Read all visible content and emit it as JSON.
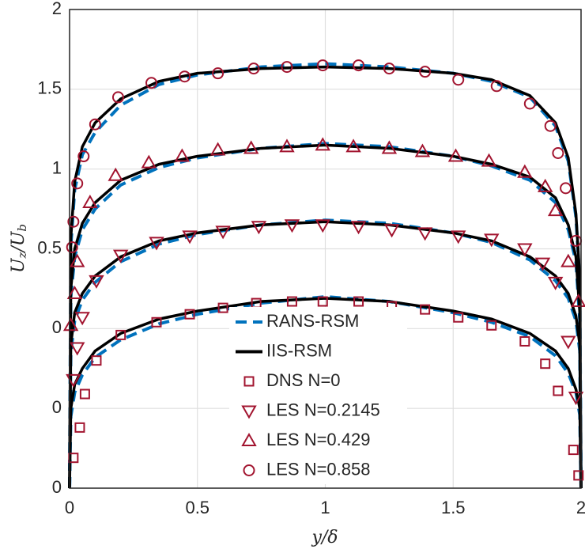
{
  "chart_data": {
    "type": "line",
    "xlabel": "y/δ",
    "ylabel": [
      "U",
      "z",
      "/U",
      "b"
    ],
    "xlim": [
      0,
      2
    ],
    "xticks": [
      0,
      0.5,
      1,
      1.5,
      2
    ],
    "ylim": [
      0,
      3
    ],
    "yticks": [
      0,
      {
        "value": 0.5,
        "label": "0"
      },
      {
        "value": 1,
        "label": "0"
      },
      {
        "value": 1.5,
        "label": "0.5"
      },
      {
        "value": 2,
        "label": "1"
      },
      {
        "value": 2.5,
        "label": "1.5"
      },
      {
        "value": 3,
        "label": "2"
      }
    ],
    "grid": true,
    "series": [
      {
        "name": "RANS-RSM",
        "color": "#0072bd",
        "style": "dashed",
        "x": [
          0,
          0.005,
          0.02,
          0.05,
          0.1,
          0.2,
          0.35,
          0.5,
          0.75,
          1,
          1.25,
          1.5,
          1.65,
          1.8,
          1.9,
          1.95,
          1.98,
          1.995,
          2
        ],
        "values": [
          [
            0,
            0.45,
            0.6,
            0.71,
            0.82,
            0.93,
            1.03,
            1.09,
            1.16,
            1.2,
            1.17,
            1.1,
            1.04,
            0.95,
            0.83,
            0.72,
            0.6,
            0.46,
            0
          ],
          [
            0,
            0.85,
            1.05,
            1.18,
            1.29,
            1.42,
            1.53,
            1.59,
            1.65,
            1.68,
            1.66,
            1.6,
            1.54,
            1.43,
            1.3,
            1.19,
            1.05,
            0.86,
            0
          ],
          [
            0,
            1.2,
            1.45,
            1.62,
            1.75,
            1.9,
            2.01,
            2.07,
            2.13,
            2.16,
            2.14,
            2.08,
            2.02,
            1.93,
            1.79,
            1.62,
            1.42,
            1.05,
            0
          ],
          [
            0,
            1.52,
            1.87,
            2.09,
            2.23,
            2.4,
            2.53,
            2.59,
            2.64,
            2.66,
            2.64,
            2.6,
            2.55,
            2.45,
            2.27,
            2.05,
            1.7,
            1.3,
            0
          ]
        ]
      },
      {
        "name": "IIS-RSM",
        "color": "#000000",
        "style": "solid",
        "x": [
          0,
          0.005,
          0.02,
          0.05,
          0.1,
          0.2,
          0.35,
          0.5,
          0.75,
          1,
          1.25,
          1.5,
          1.65,
          1.8,
          1.9,
          1.95,
          1.98,
          1.995,
          2
        ],
        "values": [
          [
            0,
            0.5,
            0.65,
            0.75,
            0.86,
            0.97,
            1.06,
            1.11,
            1.17,
            1.19,
            1.17,
            1.11,
            1.06,
            0.97,
            0.86,
            0.75,
            0.62,
            0.5,
            0
          ],
          [
            0,
            0.9,
            1.1,
            1.22,
            1.33,
            1.45,
            1.55,
            1.6,
            1.65,
            1.67,
            1.65,
            1.6,
            1.55,
            1.45,
            1.33,
            1.22,
            1.08,
            0.9,
            0
          ],
          [
            0,
            1.25,
            1.5,
            1.66,
            1.79,
            1.93,
            2.03,
            2.08,
            2.13,
            2.15,
            2.13,
            2.08,
            2.03,
            1.95,
            1.82,
            1.65,
            1.45,
            1.1,
            0
          ],
          [
            0,
            1.57,
            1.92,
            2.14,
            2.29,
            2.44,
            2.55,
            2.6,
            2.63,
            2.64,
            2.63,
            2.6,
            2.56,
            2.46,
            2.29,
            2.07,
            1.72,
            1.32,
            0
          ]
        ]
      },
      {
        "name": "DNS N=0",
        "color": "#a2142f",
        "marker": "square",
        "x": [
          0.015,
          0.04,
          0.06,
          0.105,
          0.2,
          0.34,
          0.47,
          0.6,
          0.73,
          0.87,
          0.99,
          1.13,
          1.26,
          1.39,
          1.52,
          1.65,
          1.78,
          1.86,
          1.91,
          1.97,
          1.99
        ],
        "values": [
          0.19,
          0.38,
          0.59,
          0.8,
          0.96,
          1.04,
          1.09,
          1.13,
          1.16,
          1.17,
          1.17,
          1.17,
          1.14,
          1.12,
          1.07,
          1.02,
          0.92,
          0.78,
          0.61,
          0.24,
          0.08
        ]
      },
      {
        "name": "LES N=0.2145",
        "color": "#a2142f",
        "marker": "triangle-down",
        "x": [
          0.015,
          0.03,
          0.05,
          0.105,
          0.2,
          0.34,
          0.47,
          0.6,
          0.74,
          0.87,
          0.99,
          1.13,
          1.26,
          1.39,
          1.52,
          1.65,
          1.78,
          1.85,
          1.9,
          1.95,
          1.98
        ],
        "values": [
          0.68,
          0.88,
          1.07,
          1.3,
          1.46,
          1.54,
          1.58,
          1.61,
          1.64,
          1.65,
          1.65,
          1.64,
          1.62,
          1.6,
          1.58,
          1.56,
          1.5,
          1.41,
          1.29,
          0.92,
          0.57
        ]
      },
      {
        "name": "LES N=0.429",
        "color": "#a2142f",
        "marker": "triangle-up",
        "x": [
          0.005,
          0.02,
          0.03,
          0.08,
          0.18,
          0.31,
          0.44,
          0.58,
          0.71,
          0.85,
          0.99,
          1.11,
          1.25,
          1.38,
          1.51,
          1.64,
          1.78,
          1.86,
          1.9,
          1.95,
          1.99
        ],
        "values": [
          1.02,
          1.22,
          1.42,
          1.79,
          1.96,
          2.04,
          2.08,
          2.12,
          2.13,
          2.14,
          2.15,
          2.14,
          2.13,
          2.11,
          2.08,
          2.05,
          1.98,
          1.89,
          1.74,
          1.42,
          1.17
        ]
      },
      {
        "name": "LES N=0.858",
        "color": "#a2142f",
        "marker": "circle",
        "x": [
          0.01,
          0.015,
          0.03,
          0.055,
          0.1,
          0.19,
          0.32,
          0.45,
          0.58,
          0.72,
          0.85,
          0.99,
          1.13,
          1.25,
          1.39,
          1.52,
          1.67,
          1.8,
          1.88,
          1.91,
          1.94,
          1.98
        ],
        "values": [
          1.51,
          1.67,
          1.91,
          2.08,
          2.28,
          2.45,
          2.54,
          2.58,
          2.6,
          2.63,
          2.64,
          2.65,
          2.65,
          2.63,
          2.61,
          2.56,
          2.52,
          2.41,
          2.27,
          2.1,
          1.88,
          1.55
        ]
      }
    ]
  }
}
